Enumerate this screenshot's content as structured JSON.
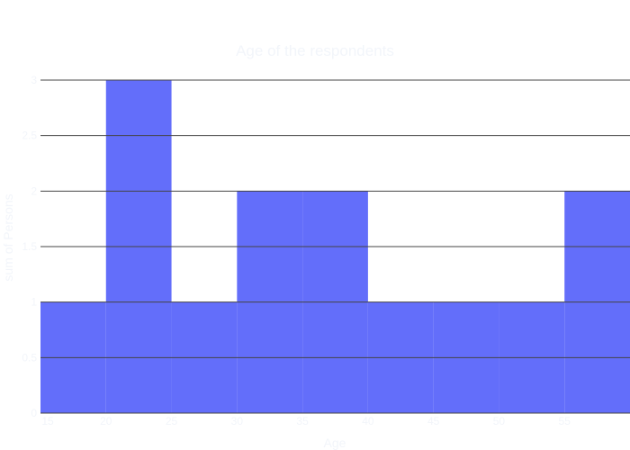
{
  "chart_data": {
    "type": "bar",
    "title": "Age of the respondents",
    "xlabel": "Age",
    "ylabel": "sum of Persons",
    "bin_width": 5,
    "bins": [
      {
        "start": 15,
        "end": 20,
        "value": 1
      },
      {
        "start": 20,
        "end": 25,
        "value": 3
      },
      {
        "start": 25,
        "end": 30,
        "value": 1
      },
      {
        "start": 30,
        "end": 35,
        "value": 2
      },
      {
        "start": 35,
        "end": 40,
        "value": 2
      },
      {
        "start": 40,
        "end": 45,
        "value": 1
      },
      {
        "start": 45,
        "end": 50,
        "value": 1
      },
      {
        "start": 50,
        "end": 55,
        "value": 1
      },
      {
        "start": 55,
        "end": 60,
        "value": 2
      }
    ],
    "xlim": [
      15,
      60
    ],
    "ylim": [
      0,
      3
    ],
    "x_ticks": [
      "15",
      "20",
      "25",
      "30",
      "35",
      "40",
      "45",
      "50",
      "55"
    ],
    "y_ticks": [
      "0",
      "0.5",
      "1",
      "1.5",
      "2",
      "2.5",
      "3"
    ],
    "bar_color": "#636efa",
    "grid": true,
    "legend": false
  }
}
